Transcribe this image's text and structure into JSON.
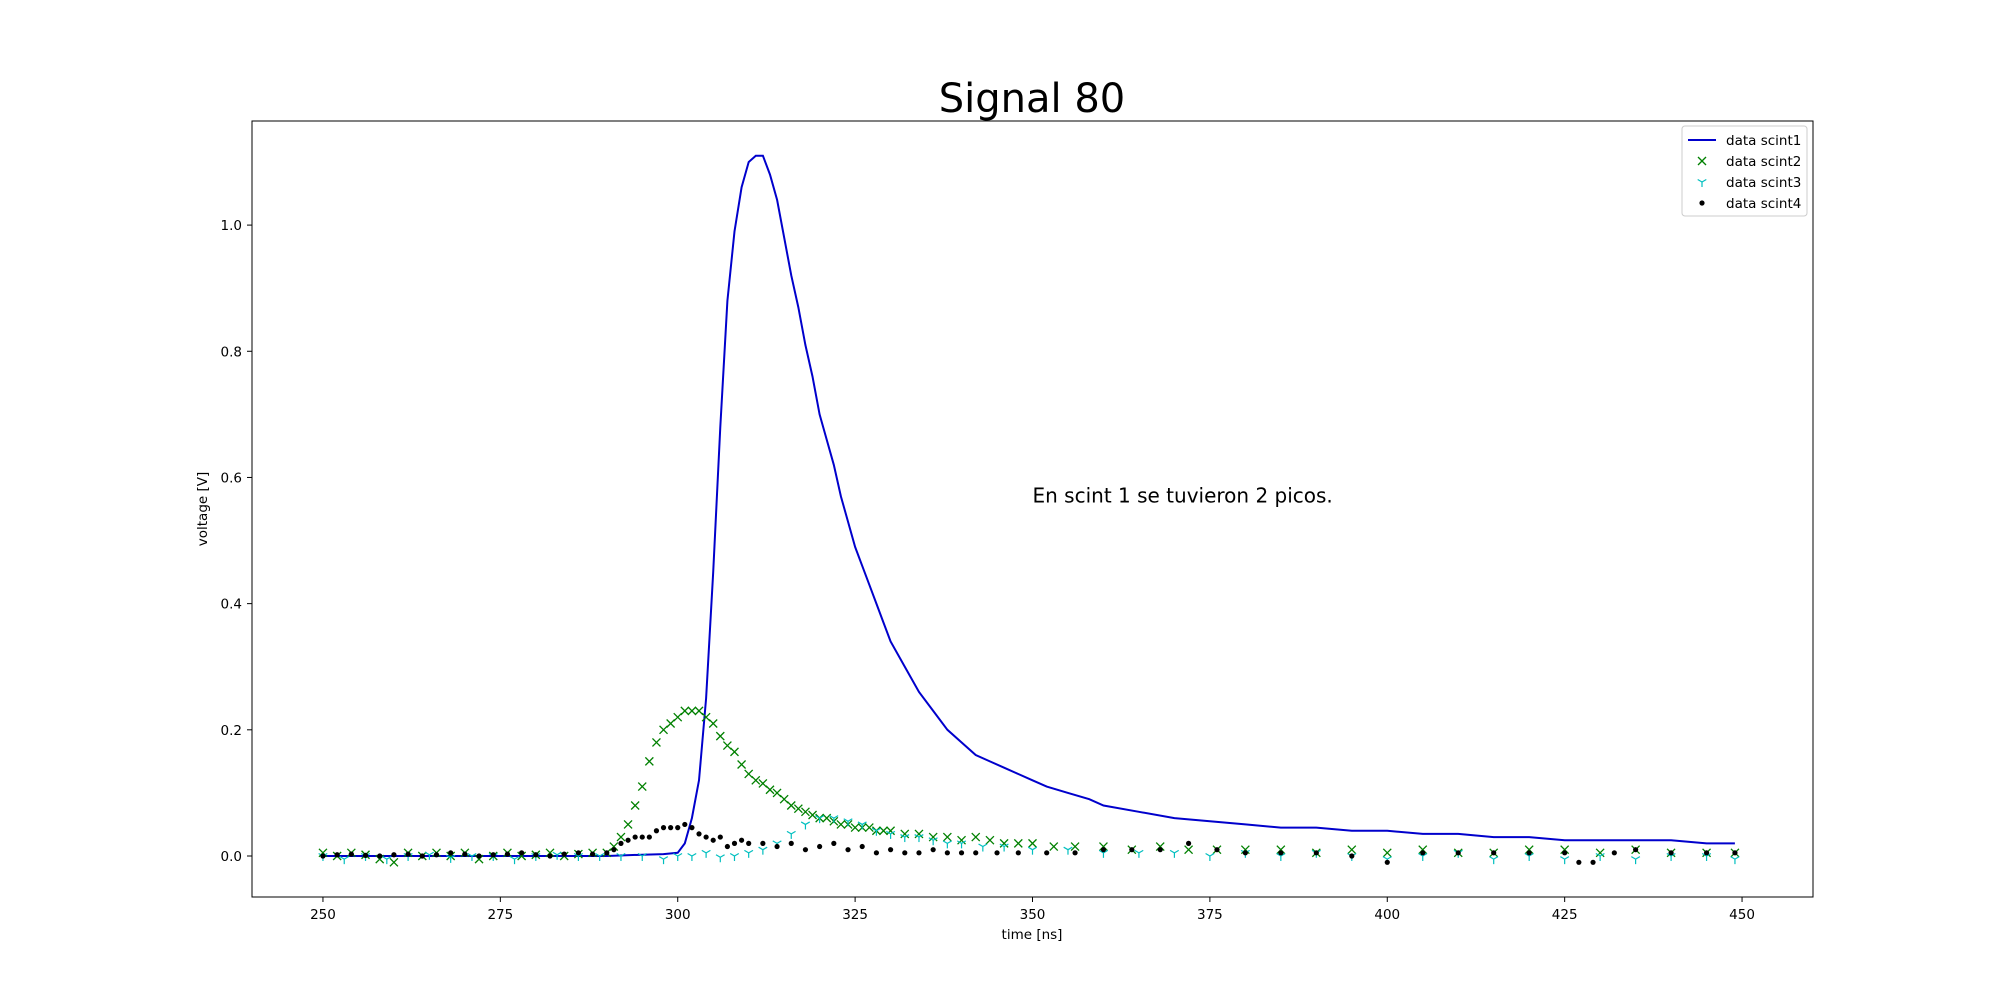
{
  "chart_data": {
    "type": "line",
    "title": "Signal 80",
    "xlabel": "time [ns]",
    "ylabel": "voltage [V]",
    "xlim": [
      240,
      460
    ],
    "ylim": [
      -0.065,
      1.165
    ],
    "xticks": [
      250,
      275,
      300,
      325,
      350,
      375,
      400,
      425,
      450
    ],
    "yticks": [
      0.0,
      0.2,
      0.4,
      0.6,
      0.8,
      1.0
    ],
    "xtick_labels": [
      "250",
      "275",
      "300",
      "325",
      "350",
      "375",
      "400",
      "425",
      "450"
    ],
    "ytick_labels": [
      "0.0",
      "0.2",
      "0.4",
      "0.6",
      "0.8",
      "1.0"
    ],
    "grid": false,
    "legend_position": "top-right",
    "annotation": {
      "text": "En scint 1 se tuvieron 2 picos.",
      "x": 350,
      "y": 0.56
    },
    "series": [
      {
        "name": "data scint1",
        "style": "line",
        "color": "#0000cc",
        "x": [
          250,
          260,
          270,
          280,
          290,
          295,
          298,
          300,
          301,
          302,
          303,
          304,
          305,
          306,
          307,
          308,
          309,
          310,
          311,
          312,
          313,
          314,
          315,
          316,
          317,
          318,
          319,
          320,
          321,
          322,
          323,
          324,
          325,
          326,
          327,
          328,
          329,
          330,
          332,
          334,
          336,
          338,
          340,
          342,
          344,
          346,
          348,
          350,
          352,
          355,
          358,
          360,
          365,
          370,
          375,
          380,
          385,
          390,
          395,
          400,
          405,
          410,
          415,
          420,
          425,
          430,
          435,
          440,
          445,
          447,
          449
        ],
        "y": [
          0,
          0,
          0,
          0,
          0,
          0.002,
          0.003,
          0.005,
          0.02,
          0.06,
          0.12,
          0.25,
          0.45,
          0.68,
          0.88,
          0.99,
          1.06,
          1.1,
          1.11,
          1.11,
          1.08,
          1.04,
          0.98,
          0.92,
          0.87,
          0.81,
          0.76,
          0.7,
          0.66,
          0.62,
          0.57,
          0.53,
          0.49,
          0.46,
          0.43,
          0.4,
          0.37,
          0.34,
          0.3,
          0.26,
          0.23,
          0.2,
          0.18,
          0.16,
          0.15,
          0.14,
          0.13,
          0.12,
          0.11,
          0.1,
          0.09,
          0.08,
          0.07,
          0.06,
          0.055,
          0.05,
          0.045,
          0.045,
          0.04,
          0.04,
          0.035,
          0.035,
          0.03,
          0.03,
          0.025,
          0.025,
          0.025,
          0.025,
          0.02,
          0.02,
          0.02
        ]
      },
      {
        "name": "data scint2",
        "style": "x",
        "color": "#008000",
        "x": [
          250,
          252,
          254,
          256,
          258,
          260,
          262,
          264,
          266,
          268,
          270,
          272,
          274,
          276,
          278,
          280,
          282,
          284,
          286,
          288,
          290,
          291,
          292,
          293,
          294,
          295,
          296,
          297,
          298,
          299,
          300,
          301,
          302,
          303,
          304,
          305,
          306,
          307,
          308,
          309,
          310,
          311,
          312,
          313,
          314,
          315,
          316,
          317,
          318,
          319,
          320,
          321,
          322,
          323,
          324,
          325,
          326,
          327,
          328,
          329,
          330,
          332,
          334,
          336,
          338,
          340,
          342,
          344,
          346,
          348,
          350,
          353,
          356,
          360,
          364,
          368,
          372,
          376,
          380,
          385,
          390,
          395,
          400,
          405,
          410,
          415,
          420,
          425,
          430,
          435,
          440,
          445,
          449
        ],
        "y": [
          0.005,
          0,
          0.005,
          0.002,
          -0.005,
          -0.01,
          0.005,
          0,
          0.005,
          0,
          0.005,
          -0.005,
          0,
          0.005,
          0,
          0.002,
          0.005,
          0,
          0.003,
          0.005,
          0.005,
          0.015,
          0.03,
          0.05,
          0.08,
          0.11,
          0.15,
          0.18,
          0.2,
          0.21,
          0.22,
          0.23,
          0.23,
          0.23,
          0.22,
          0.21,
          0.19,
          0.175,
          0.165,
          0.145,
          0.13,
          0.12,
          0.115,
          0.105,
          0.1,
          0.09,
          0.08,
          0.075,
          0.07,
          0.065,
          0.06,
          0.06,
          0.055,
          0.05,
          0.05,
          0.045,
          0.045,
          0.045,
          0.04,
          0.04,
          0.04,
          0.035,
          0.035,
          0.03,
          0.03,
          0.025,
          0.03,
          0.025,
          0.02,
          0.02,
          0.02,
          0.015,
          0.015,
          0.015,
          0.01,
          0.015,
          0.01,
          0.01,
          0.01,
          0.01,
          0.005,
          0.01,
          0.005,
          0.01,
          0.005,
          0.005,
          0.01,
          0.01,
          0.005,
          0.01,
          0.005,
          0.005,
          0.005
        ]
      },
      {
        "name": "data scint3",
        "style": "tri",
        "color": "#00bfbf",
        "x": [
          250,
          253,
          256,
          259,
          262,
          265,
          268,
          271,
          274,
          277,
          280,
          283,
          286,
          289,
          292,
          295,
          298,
          300,
          302,
          304,
          306,
          308,
          310,
          312,
          314,
          316,
          318,
          320,
          322,
          324,
          326,
          328,
          330,
          332,
          334,
          336,
          338,
          340,
          343,
          346,
          350,
          355,
          360,
          365,
          370,
          375,
          380,
          385,
          390,
          395,
          400,
          405,
          410,
          415,
          420,
          425,
          430,
          435,
          440,
          445,
          449
        ],
        "y": [
          0,
          -0.005,
          0,
          -0.005,
          0,
          0.002,
          -0.003,
          0,
          0,
          -0.005,
          0,
          0.002,
          0,
          0,
          0,
          0,
          -0.005,
          0,
          0,
          0.005,
          -0.002,
          0,
          0.005,
          0.01,
          0.02,
          0.035,
          0.05,
          0.06,
          0.06,
          0.055,
          0.05,
          0.04,
          0.035,
          0.03,
          0.03,
          0.025,
          0.02,
          0.02,
          0.015,
          0.015,
          0.01,
          0.01,
          0.005,
          0.005,
          0.005,
          0,
          0.005,
          0,
          0.005,
          0,
          -0.005,
          0,
          0.005,
          -0.005,
          0,
          -0.005,
          0,
          -0.005,
          0,
          0,
          -0.005
        ]
      },
      {
        "name": "data scint4",
        "style": "dot",
        "color": "#000000",
        "x": [
          250,
          252,
          254,
          256,
          258,
          260,
          262,
          264,
          266,
          268,
          270,
          272,
          274,
          276,
          278,
          280,
          282,
          284,
          286,
          288,
          290,
          291,
          292,
          293,
          294,
          295,
          296,
          297,
          298,
          299,
          300,
          301,
          302,
          303,
          304,
          305,
          306,
          307,
          308,
          309,
          310,
          312,
          314,
          316,
          318,
          320,
          322,
          324,
          326,
          328,
          330,
          332,
          334,
          336,
          338,
          340,
          342,
          345,
          348,
          352,
          356,
          360,
          364,
          368,
          372,
          376,
          380,
          385,
          390,
          395,
          400,
          405,
          410,
          415,
          420,
          425,
          427,
          429,
          432,
          435,
          440,
          445,
          449
        ],
        "y": [
          0,
          0.002,
          0.003,
          0.001,
          0,
          0.002,
          0.003,
          0,
          0.002,
          0.005,
          0.003,
          0,
          0.002,
          0.003,
          0.005,
          0.002,
          0,
          0.003,
          0.005,
          0.003,
          0.005,
          0.01,
          0.02,
          0.025,
          0.03,
          0.03,
          0.03,
          0.04,
          0.045,
          0.045,
          0.045,
          0.05,
          0.045,
          0.035,
          0.03,
          0.025,
          0.03,
          0.015,
          0.02,
          0.025,
          0.02,
          0.02,
          0.015,
          0.02,
          0.01,
          0.015,
          0.02,
          0.01,
          0.015,
          0.005,
          0.01,
          0.005,
          0.005,
          0.01,
          0.005,
          0.005,
          0.005,
          0.005,
          0.005,
          0.005,
          0.005,
          0.01,
          0.01,
          0.01,
          0.02,
          0.01,
          0.005,
          0.005,
          0.005,
          0,
          -0.01,
          0.005,
          0.005,
          0.005,
          0.005,
          0.005,
          -0.01,
          -0.01,
          0.005,
          0.01,
          0.005,
          0.005,
          0.005
        ]
      }
    ]
  }
}
